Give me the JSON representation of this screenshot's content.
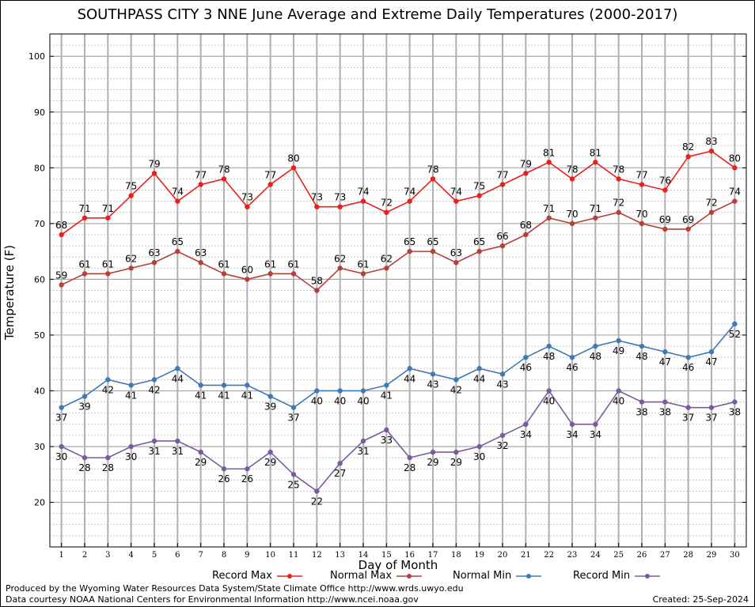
{
  "chart_data": {
    "type": "line",
    "title": "SOUTHPASS CITY 3 NNE June Average and Extreme Daily Temperatures (2000-2017)",
    "xlabel": "Day of Month",
    "ylabel": "Temperature (F)",
    "ylim": [
      12,
      104
    ],
    "xlim": [
      0.5,
      30.5
    ],
    "yticks": [
      20,
      30,
      40,
      50,
      60,
      70,
      80,
      90,
      100
    ],
    "grid": true,
    "legend_position": "bottom",
    "x": [
      1,
      2,
      3,
      4,
      5,
      6,
      7,
      8,
      9,
      10,
      11,
      12,
      13,
      14,
      15,
      16,
      17,
      18,
      19,
      20,
      21,
      22,
      23,
      24,
      25,
      26,
      27,
      28,
      29,
      30
    ],
    "series": [
      {
        "name": "Record Max",
        "color": "#e8201e",
        "label_position": "above",
        "values": [
          68,
          71,
          71,
          75,
          79,
          74,
          77,
          78,
          73,
          77,
          80,
          73,
          73,
          74,
          72,
          74,
          78,
          74,
          75,
          77,
          79,
          81,
          78,
          81,
          78,
          77,
          76,
          82,
          83,
          80
        ]
      },
      {
        "name": "Normal Max",
        "color": "#b5403c",
        "label_position": "above",
        "values": [
          59,
          61,
          61,
          62,
          63,
          65,
          63,
          61,
          60,
          61,
          61,
          58,
          62,
          61,
          62,
          65,
          65,
          63,
          65,
          66,
          68,
          71,
          70,
          71,
          72,
          70,
          69,
          69,
          72,
          74
        ]
      },
      {
        "name": "Normal Min",
        "color": "#3f7ab5",
        "label_position": "below",
        "values": [
          37,
          39,
          42,
          41,
          42,
          44,
          41,
          41,
          41,
          39,
          37,
          40,
          40,
          40,
          41,
          44,
          43,
          42,
          44,
          43,
          46,
          48,
          46,
          48,
          49,
          48,
          47,
          46,
          47,
          52
        ]
      },
      {
        "name": "Record Min",
        "color": "#7a5c9e",
        "label_position": "below",
        "values": [
          30,
          28,
          28,
          30,
          31,
          31,
          29,
          26,
          26,
          29,
          25,
          22,
          27,
          31,
          33,
          28,
          29,
          29,
          30,
          32,
          34,
          40,
          34,
          34,
          40,
          38,
          38,
          37,
          37,
          38
        ]
      }
    ]
  },
  "credits": {
    "line1": "Produced by the Wyoming Water Resources Data System/State Climate Office http://www.wrds.uwyo.edu",
    "line2": "Data courtesy NOAA National Centers for Environmental Information http://www.ncei.noaa.gov",
    "created": "Created:  25-Sep-2024"
  }
}
